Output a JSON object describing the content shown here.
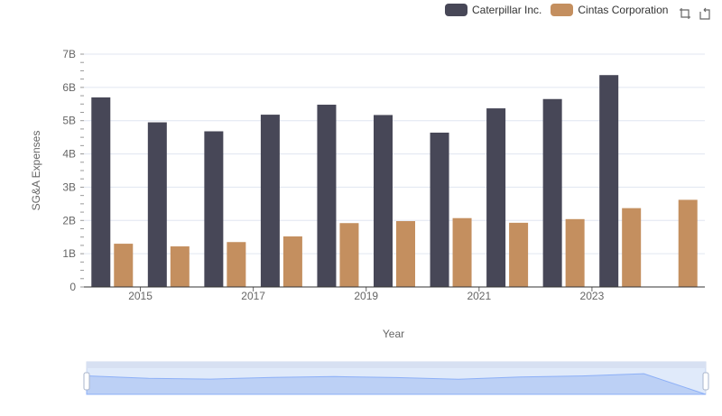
{
  "legend": [
    {
      "name": "Caterpillar Inc.",
      "color": "#474757"
    },
    {
      "name": "Cintas Corporation",
      "color": "#c48f5f"
    }
  ],
  "toolbox": {
    "icons": [
      "zoom-icon",
      "restore-icon"
    ]
  },
  "chart_data": {
    "type": "bar",
    "xlabel": "Year",
    "ylabel": "SG&A Expenses",
    "categories": [
      "2014",
      "2015",
      "2016",
      "2017",
      "2018",
      "2019",
      "2020",
      "2021",
      "2022",
      "2023",
      "2024"
    ],
    "x_tick_labels": [
      "2015",
      "2017",
      "2019",
      "2021",
      "2023"
    ],
    "y_tick_labels": [
      "0",
      "1B",
      "2B",
      "3B",
      "4B",
      "5B",
      "6B",
      "7B"
    ],
    "ylim": [
      0,
      7000000000
    ],
    "grid": true,
    "legend_position": "top-right",
    "series": [
      {
        "name": "Caterpillar Inc.",
        "color": "#474757",
        "values": [
          5700000000,
          4950000000,
          4680000000,
          5180000000,
          5480000000,
          5170000000,
          4640000000,
          5370000000,
          5650000000,
          6370000000,
          null
        ]
      },
      {
        "name": "Cintas Corporation",
        "color": "#c48f5f",
        "values": [
          1300000000,
          1220000000,
          1350000000,
          1520000000,
          1920000000,
          1980000000,
          2070000000,
          1930000000,
          2040000000,
          2370000000,
          2620000000
        ]
      }
    ]
  }
}
